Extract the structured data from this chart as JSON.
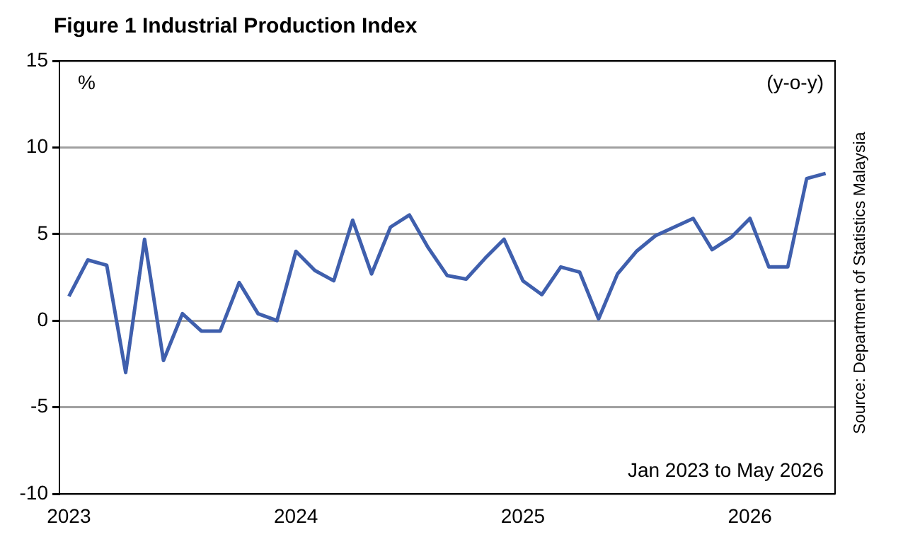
{
  "chart_data": {
    "type": "line",
    "title": "Figure 1 Industrial Production Index",
    "ylabel": "%",
    "annotations": [
      "(y-o-y)",
      "Jan 2023 to May 2026",
      "Source: Department of Statistics Malaysia"
    ],
    "categories": [
      "2023",
      null,
      null,
      null,
      null,
      null,
      null,
      null,
      null,
      null,
      null,
      null,
      "2024",
      null,
      null,
      null,
      null,
      null,
      null,
      null,
      null,
      null,
      null,
      null,
      "2025",
      null,
      null,
      null,
      null,
      null,
      null,
      null,
      null,
      null,
      null,
      null,
      "2026",
      null,
      null,
      null,
      null
    ],
    "series": [
      {
        "color": "#3f5fad",
        "values": [
          1.4,
          3.5,
          3.2,
          -3.0,
          4.7,
          -2.3,
          0.4,
          -0.6,
          -0.6,
          2.2,
          0.4,
          0.0,
          4.0,
          2.9,
          2.3,
          5.8,
          2.7,
          5.4,
          6.1,
          4.2,
          2.6,
          2.4,
          3.6,
          4.7,
          2.3,
          1.5,
          3.1,
          2.8,
          0.1,
          2.7,
          4.0,
          4.9,
          5.4,
          5.9,
          4.1,
          4.8,
          5.9,
          3.1,
          3.1,
          8.2,
          8.5
        ]
      }
    ],
    "ylim": [
      -10,
      15
    ],
    "yticks": [
      -10,
      -5,
      0,
      5,
      10,
      15
    ],
    "grid": "y",
    "legend": false
  }
}
